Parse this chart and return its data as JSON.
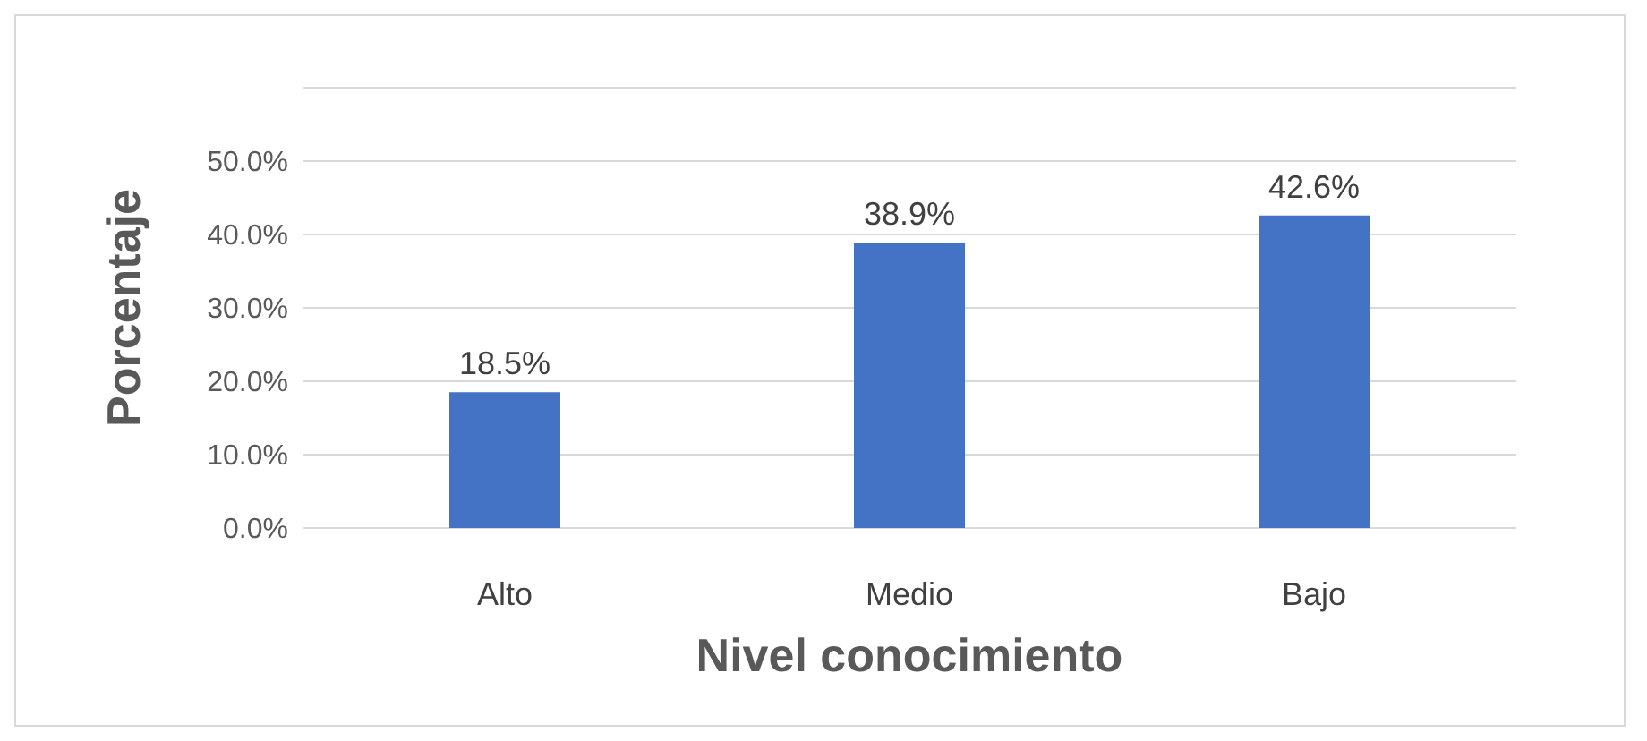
{
  "chart_data": {
    "type": "bar",
    "xlabel": "Nivel conocimiento",
    "ylabel": "Porcentaje",
    "categories": [
      "Alto",
      "Medio",
      "Bajo"
    ],
    "values": [
      18.5,
      38.9,
      42.6
    ],
    "value_labels": [
      "18.5%",
      "38.9%",
      "42.6%"
    ],
    "color": "#4472c4",
    "ylim": [
      0,
      60
    ],
    "yticks": [
      {
        "value": 0,
        "label": "0.0%"
      },
      {
        "value": 10,
        "label": "10.0%"
      },
      {
        "value": 20,
        "label": "20.0%"
      },
      {
        "value": 30,
        "label": "30.0%"
      },
      {
        "value": 40,
        "label": "40.0%"
      },
      {
        "value": 50,
        "label": "50.0%"
      },
      {
        "value": 60,
        "label": null
      }
    ],
    "grid": "y"
  }
}
